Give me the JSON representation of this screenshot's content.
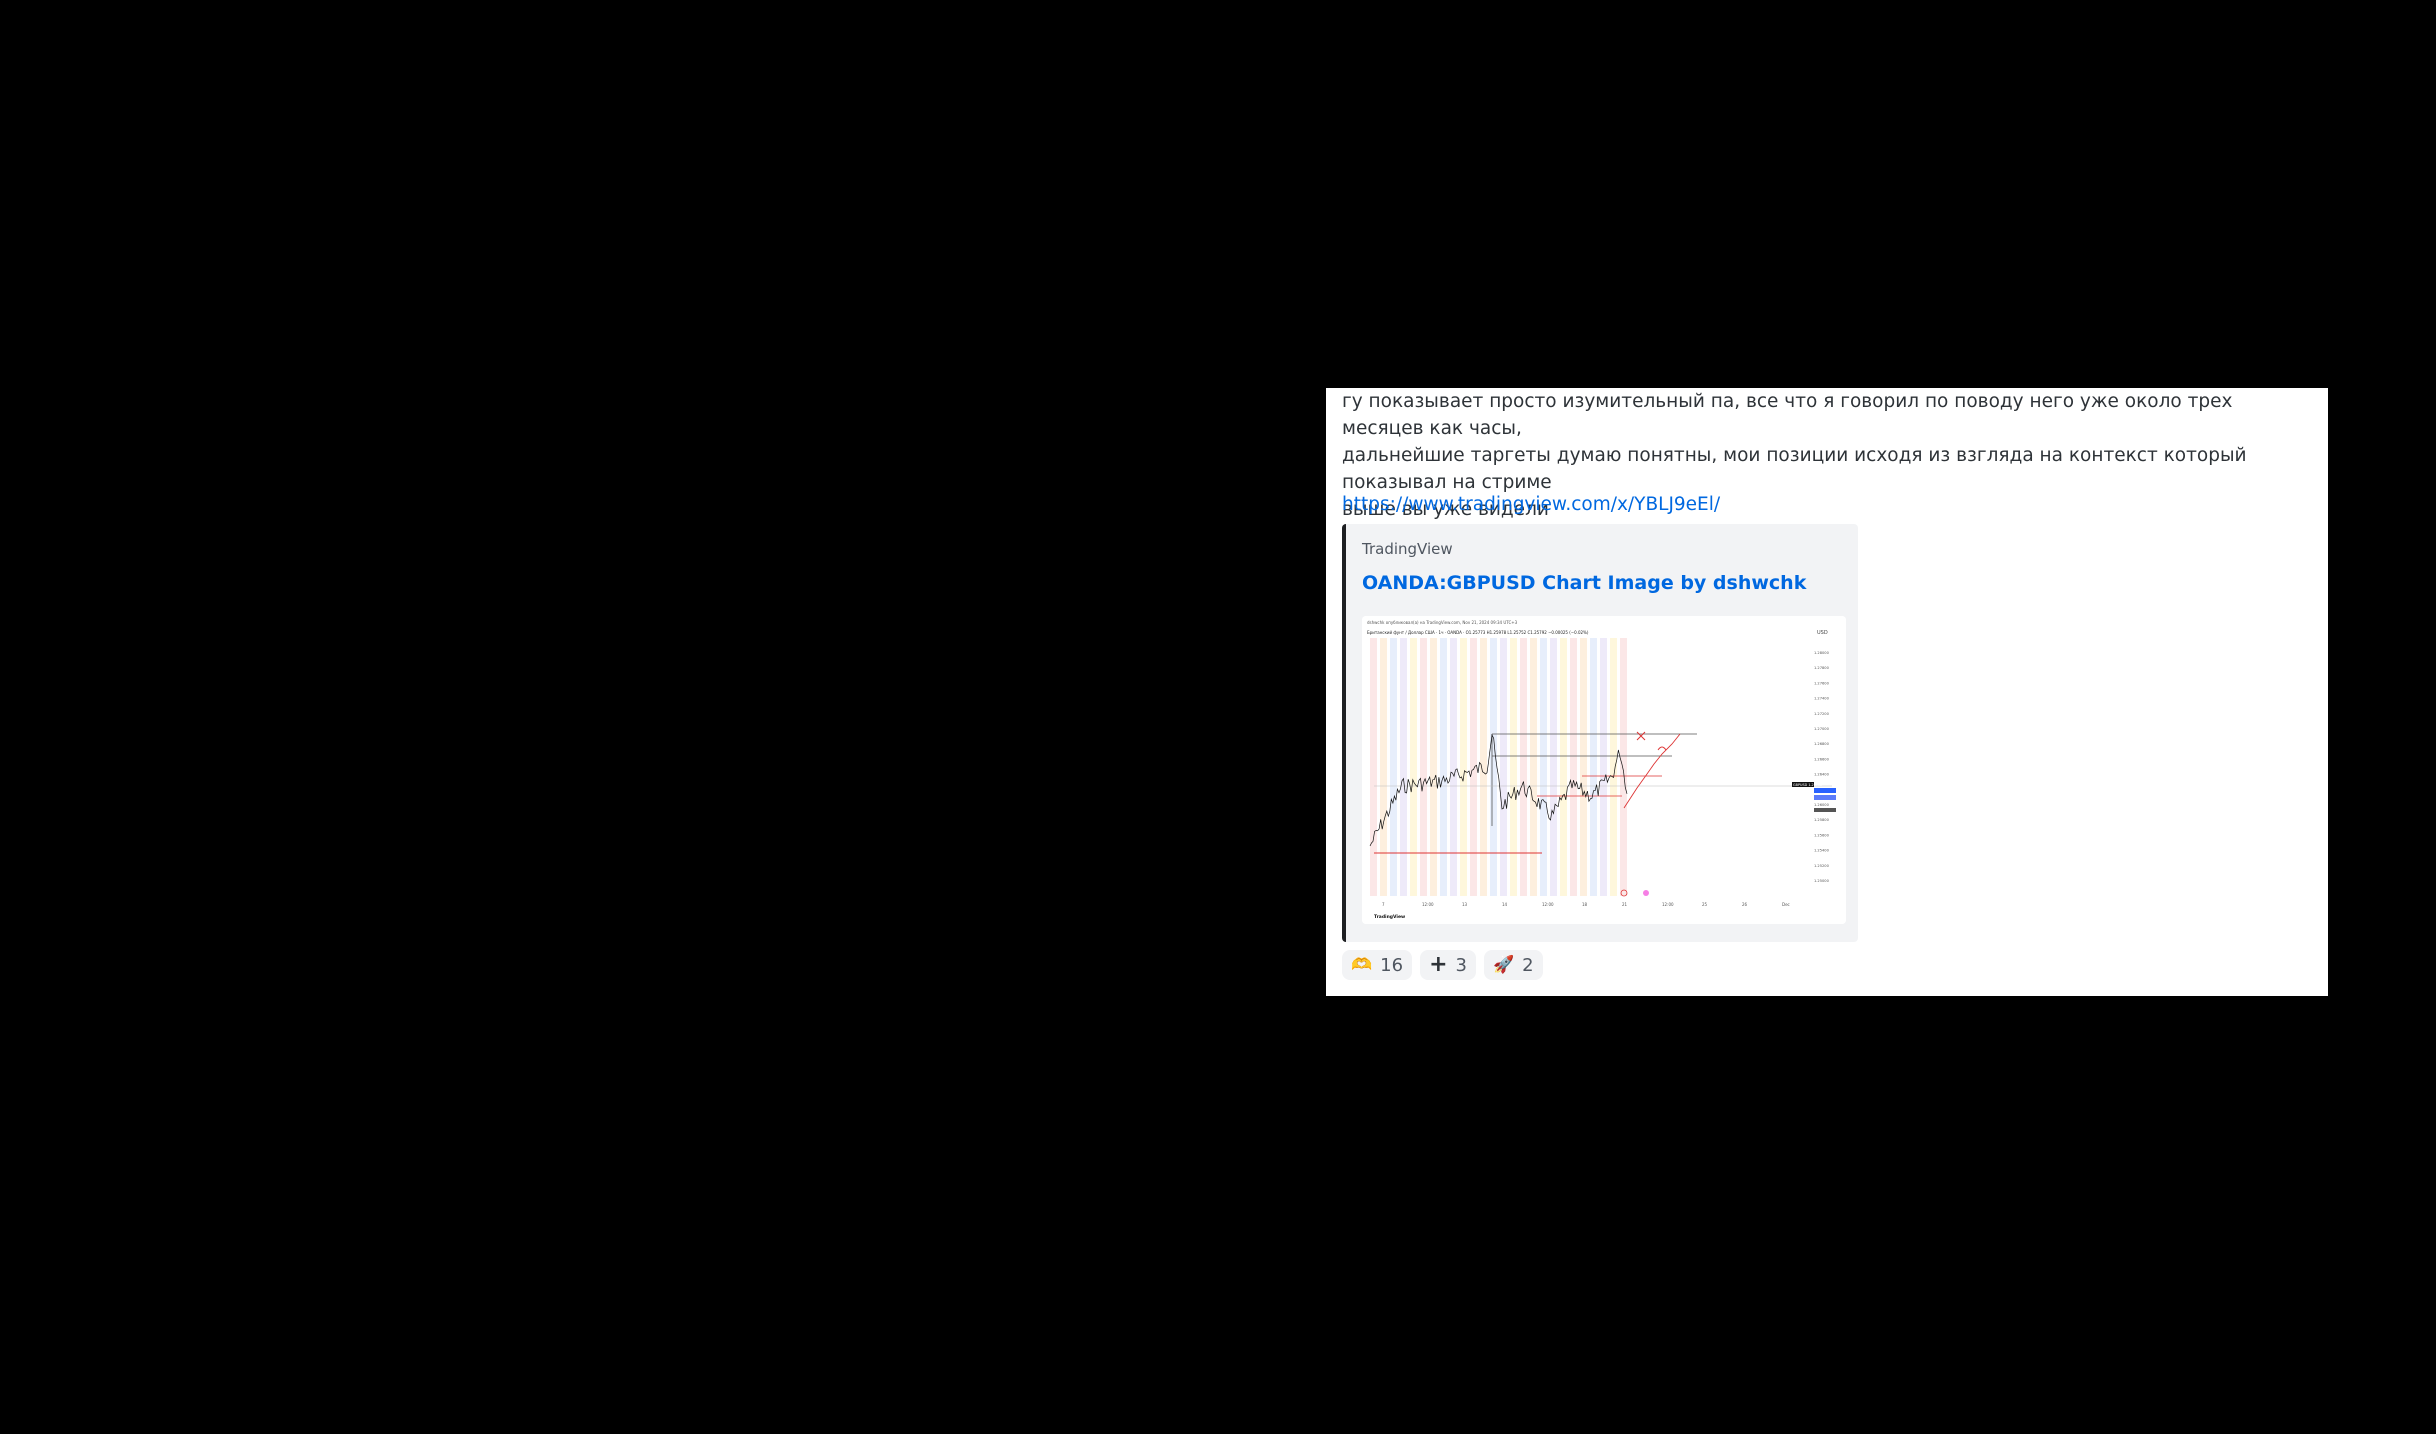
{
  "message": {
    "lines": [
      "гу показывает просто изумительный па, все что я говорил по поводу него уже около трех месяцев как часы,",
      "дальнейшие таргеты думаю понятны, мои позиции исходя из взгляда на контекст который показывал на стриме",
      "выше вы уже видели"
    ],
    "link": "https://www.tradingview.com/x/YBLJ9eEl/"
  },
  "embed": {
    "provider": "TradingView",
    "title": "OANDA:GBPUSD Chart Image by dshwchk",
    "image": {
      "header": "dshwchk опубликовал(а) на TradingView.com, Nov 21, 2024 09:34 UTC+3",
      "legend": "Британский фунт / Доллар США · 1ч · OANDA · O1.25773 H1.25978 L1.25752 C1.25792 −0.00025 (−0.02%)",
      "currency": "USD",
      "price_ticks": [
        "1.28000",
        "1.27800",
        "1.27600",
        "1.27400",
        "1.27200",
        "1.27000",
        "1.26800",
        "1.26600",
        "1.26400",
        "1.26200",
        "1.26000",
        "1.25800",
        "1.25600",
        "1.25400",
        "1.25200",
        "1.25000"
      ],
      "time_ticks": [
        "7",
        "12:00",
        "13",
        "14",
        "12:00",
        "18",
        "21",
        "12:00",
        "25",
        "26",
        "Dec"
      ],
      "footer_brand": "TradingView",
      "price_tag": "GBPUSD 1.25792"
    }
  },
  "reactions": [
    {
      "emoji": "🫶",
      "count": "16"
    },
    {
      "emoji": "➕",
      "count": "3"
    },
    {
      "emoji": "🚀",
      "count": "2"
    }
  ]
}
